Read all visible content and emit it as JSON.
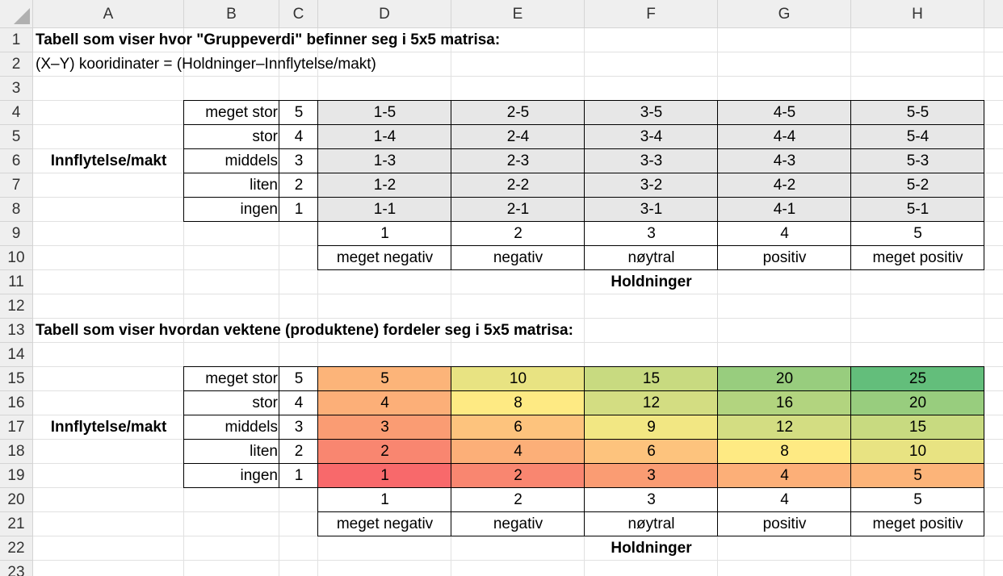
{
  "columns": [
    "A",
    "B",
    "C",
    "D",
    "E",
    "F",
    "G",
    "H"
  ],
  "rows": [
    "1",
    "2",
    "3",
    "4",
    "5",
    "6",
    "7",
    "8",
    "9",
    "10",
    "11",
    "12",
    "13",
    "14",
    "15",
    "16",
    "17",
    "18",
    "19",
    "20",
    "21",
    "22",
    "23"
  ],
  "title1": "Tabell som viser hvor \"Gruppeverdi\" befinner seg i 5x5 matrisa:",
  "subtitle1": "(X–Y) kooridinater = (Holdninger–Innflytelse/makt)",
  "title2": "Tabell som viser hvordan vektene (produktene) fordeler seg i 5x5 matrisa:",
  "y_axis_label": "Innflytelse/makt",
  "x_axis_label": "Holdninger",
  "influence_levels": [
    {
      "name": "meget stor",
      "value": "5"
    },
    {
      "name": "stor",
      "value": "4"
    },
    {
      "name": "middels",
      "value": "3"
    },
    {
      "name": "liten",
      "value": "2"
    },
    {
      "name": "ingen",
      "value": "1"
    }
  ],
  "attitude_numbers": [
    "1",
    "2",
    "3",
    "4",
    "5"
  ],
  "attitude_names": [
    "meget negativ",
    "negativ",
    "nøytral",
    "positiv",
    "meget positiv"
  ],
  "coord_grid": [
    [
      "1-5",
      "2-5",
      "3-5",
      "4-5",
      "5-5"
    ],
    [
      "1-4",
      "2-4",
      "3-4",
      "4-4",
      "5-4"
    ],
    [
      "1-3",
      "2-3",
      "3-3",
      "4-3",
      "5-3"
    ],
    [
      "1-2",
      "2-2",
      "3-2",
      "4-2",
      "5-2"
    ],
    [
      "1-1",
      "2-1",
      "3-1",
      "4-1",
      "5-1"
    ]
  ],
  "weight_grid": [
    [
      "5",
      "10",
      "15",
      "20",
      "25"
    ],
    [
      "4",
      "8",
      "12",
      "16",
      "20"
    ],
    [
      "3",
      "6",
      "9",
      "12",
      "15"
    ],
    [
      "2",
      "4",
      "6",
      "8",
      "10"
    ],
    [
      "1",
      "2",
      "3",
      "4",
      "5"
    ]
  ],
  "colors": {
    "coord_fill": "#e7e7e7",
    "weight_fills": {
      "1": "#f8696b",
      "2": "#f98670",
      "3": "#fa9c73",
      "4": "#fcaf78",
      "5": "#fcb479",
      "6": "#fdc37d",
      "8": "#feea83",
      "9": "#f2e783",
      "10": "#e8e382",
      "12": "#d3dd82",
      "15": "#c8da80",
      "16": "#b2d47f",
      "20": "#98cd7e",
      "25": "#63be7b"
    }
  }
}
